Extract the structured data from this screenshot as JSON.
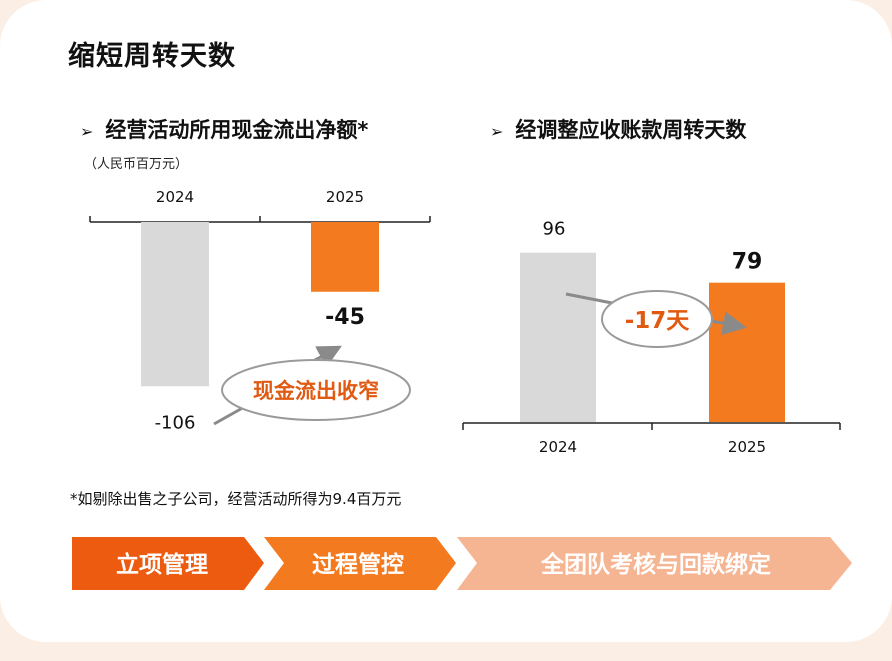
{
  "title": "缩短周转天数",
  "footnote": "*如剔除出售之子公司，经营活动所得为9.4百万元",
  "colors": {
    "gray": "#d9d9d9",
    "orange": "#f47a1f",
    "accent_text": "#e05a12",
    "dark": "#111111"
  },
  "chart_data": [
    {
      "type": "bar",
      "title": "经营活动所用现金流出净额*",
      "unit": "（人民币百万元）",
      "categories": [
        "2024",
        "2025"
      ],
      "values": [
        -106,
        -45
      ],
      "labels": [
        "-106",
        "-45"
      ],
      "annotation": "现金流出收窄",
      "ylim": [
        -120,
        0
      ]
    },
    {
      "type": "bar",
      "title": "经调整应收账款周转天数",
      "categories": [
        "2024",
        "2025"
      ],
      "values": [
        96,
        79
      ],
      "labels": [
        "96",
        "79"
      ],
      "annotation": "-17天",
      "ylim": [
        0,
        110
      ]
    }
  ],
  "flow": {
    "steps": [
      {
        "label": "立项管理",
        "color": "#ec5b0f"
      },
      {
        "label": "过程管控",
        "color": "#f47a1f"
      },
      {
        "label": "全团队考核与回款绑定",
        "color": "#f6b592"
      }
    ]
  }
}
